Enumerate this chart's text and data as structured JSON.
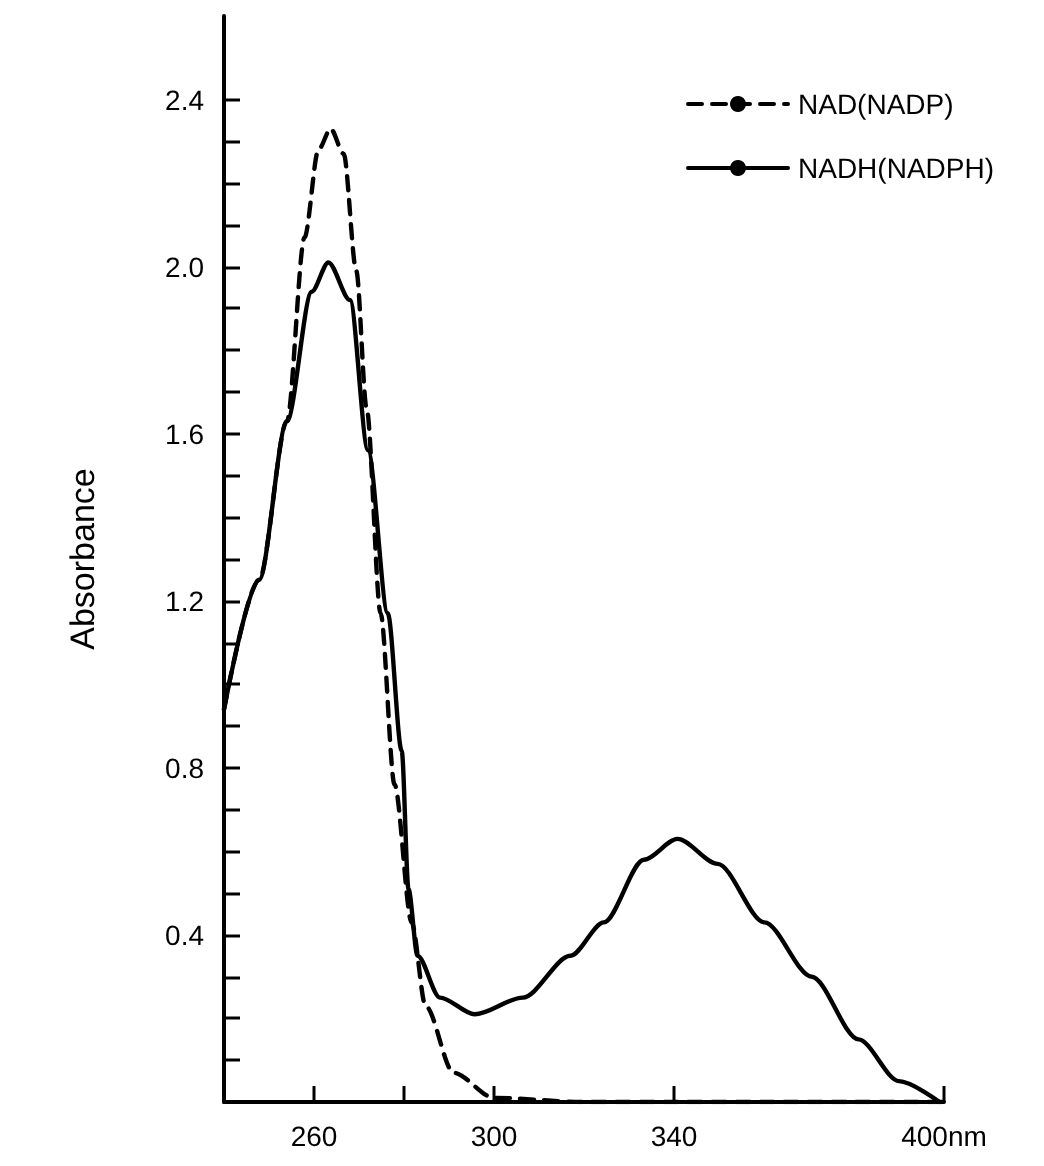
{
  "chart_data": {
    "type": "line",
    "ylabel": "Absorbance",
    "xlim": [
      240,
      400
    ],
    "ylim": [
      0,
      2.6
    ],
    "xticks": [
      260,
      {
        "value": 280,
        "label": null
      },
      300,
      340,
      {
        "value": 400,
        "label": "400nm"
      }
    ],
    "yticks": [
      {
        "value": 0.1,
        "label": null
      },
      {
        "value": 0.2,
        "label": null
      },
      {
        "value": 0.3,
        "label": null
      },
      0.4,
      {
        "value": 0.5,
        "label": null
      },
      {
        "value": 0.6,
        "label": null
      },
      {
        "value": 0.7,
        "label": null
      },
      0.8,
      {
        "value": 0.9,
        "label": null
      },
      {
        "value": 1.0,
        "label": null
      },
      {
        "value": 1.1,
        "label": null
      },
      1.2,
      {
        "value": 1.3,
        "label": null
      },
      {
        "value": 1.4,
        "label": null
      },
      {
        "value": 1.5,
        "label": null
      },
      1.6,
      {
        "value": 1.7,
        "label": null
      },
      {
        "value": 1.8,
        "label": null
      },
      {
        "value": 1.9,
        "label": null
      },
      {
        "value": 2.0,
        "label": "2.0"
      },
      {
        "value": 2.1,
        "label": null
      },
      {
        "value": 2.2,
        "label": null
      },
      {
        "value": 2.3,
        "label": null
      },
      2.4
    ],
    "grid": false,
    "legend": "top right",
    "marker": "none",
    "series": [
      {
        "name": "NAD(NADP)",
        "color": "#000000",
        "line_style": "dashed",
        "x": [
          240,
          247.8,
          254,
          257.9,
          261,
          263.7,
          266.6,
          269.4,
          271.7,
          274.8,
          277.9,
          281.7,
          284.8,
          291,
          300,
          320,
          340,
          360,
          380,
          400
        ],
        "values": [
          0.94,
          1.25,
          1.63,
          2.07,
          2.28,
          2.33,
          2.27,
          1.99,
          1.66,
          1.17,
          0.76,
          0.43,
          0.23,
          0.07,
          0.01,
          0,
          0,
          0,
          0,
          0
        ]
      },
      {
        "name": "NADH(NADPH)",
        "color": "#000000",
        "line_style": "solid",
        "x": [
          240,
          247.8,
          254,
          259.5,
          263.2,
          268,
          272,
          276.4,
          279.5,
          281,
          283,
          288,
          295.7,
          306.4,
          317,
          324.4,
          333.3,
          340.8,
          349.7,
          360.1,
          370.6,
          381,
          390,
          399
        ],
        "values": [
          0.94,
          1.25,
          1.63,
          1.94,
          2.01,
          1.92,
          1.56,
          1.17,
          0.84,
          0.51,
          0.35,
          0.25,
          0.21,
          0.25,
          0.35,
          0.43,
          0.58,
          0.63,
          0.57,
          0.43,
          0.3,
          0.15,
          0.05,
          0
        ]
      }
    ]
  }
}
